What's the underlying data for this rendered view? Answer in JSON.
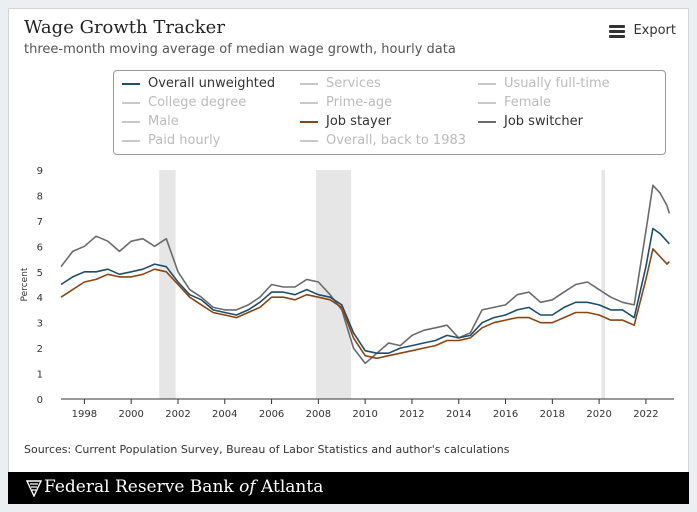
{
  "header": {
    "title": "Wage Growth Tracker",
    "subtitle": "three-month moving average of median wage growth, hourly data",
    "export_label": "Export"
  },
  "legend": {
    "items": [
      {
        "label": "Overall unweighted",
        "active": true,
        "color": "#1f4e6b"
      },
      {
        "label": "Services",
        "active": false,
        "color": "#c8c8c8"
      },
      {
        "label": "Usually full-time",
        "active": false,
        "color": "#c8c8c8"
      },
      {
        "label": "College degree",
        "active": false,
        "color": "#c8c8c8"
      },
      {
        "label": "Prime-age",
        "active": false,
        "color": "#c8c8c8"
      },
      {
        "label": "Female",
        "active": false,
        "color": "#c8c8c8"
      },
      {
        "label": "Male",
        "active": false,
        "color": "#c8c8c8"
      },
      {
        "label": "Job stayer",
        "active": true,
        "color": "#8b4513"
      },
      {
        "label": "Job switcher",
        "active": true,
        "color": "#6b6b6b"
      },
      {
        "label": "Paid hourly",
        "active": false,
        "color": "#c8c8c8"
      },
      {
        "label": "Overall, back to 1983",
        "active": false,
        "color": "#c8c8c8"
      }
    ]
  },
  "chart_data": {
    "type": "line",
    "ylabel": "Percent",
    "xlabel": "",
    "ylim": [
      0,
      9
    ],
    "xlim": [
      1997,
      2023.2
    ],
    "yticks": [
      "0",
      "1",
      "2",
      "3",
      "4",
      "5",
      "6",
      "7",
      "8",
      "9"
    ],
    "xticks": [
      "1998",
      "2000",
      "2002",
      "2004",
      "2006",
      "2008",
      "2010",
      "2012",
      "2014",
      "2016",
      "2018",
      "2020",
      "2022"
    ],
    "recessions": [
      [
        2001.2,
        2001.9
      ],
      [
        2007.9,
        2009.4
      ],
      [
        2020.1,
        2020.25
      ]
    ],
    "series": [
      {
        "name": "Overall unweighted",
        "color": "#1f4e6b",
        "points": [
          [
            1997.0,
            4.5
          ],
          [
            1997.5,
            4.8
          ],
          [
            1998.0,
            5.0
          ],
          [
            1998.5,
            5.0
          ],
          [
            1999.0,
            5.1
          ],
          [
            1999.5,
            4.9
          ],
          [
            2000.0,
            5.0
          ],
          [
            2000.5,
            5.1
          ],
          [
            2001.0,
            5.3
          ],
          [
            2001.5,
            5.2
          ],
          [
            2002.0,
            4.6
          ],
          [
            2002.5,
            4.1
          ],
          [
            2003.0,
            3.9
          ],
          [
            2003.5,
            3.5
          ],
          [
            2004.0,
            3.4
          ],
          [
            2004.5,
            3.3
          ],
          [
            2005.0,
            3.5
          ],
          [
            2005.5,
            3.8
          ],
          [
            2006.0,
            4.2
          ],
          [
            2006.5,
            4.2
          ],
          [
            2007.0,
            4.1
          ],
          [
            2007.5,
            4.3
          ],
          [
            2008.0,
            4.1
          ],
          [
            2008.5,
            4.0
          ],
          [
            2009.0,
            3.7
          ],
          [
            2009.5,
            2.6
          ],
          [
            2010.0,
            1.9
          ],
          [
            2010.5,
            1.8
          ],
          [
            2011.0,
            1.8
          ],
          [
            2011.5,
            2.0
          ],
          [
            2012.0,
            2.1
          ],
          [
            2012.5,
            2.2
          ],
          [
            2013.0,
            2.3
          ],
          [
            2013.5,
            2.5
          ],
          [
            2014.0,
            2.4
          ],
          [
            2014.5,
            2.5
          ],
          [
            2015.0,
            3.0
          ],
          [
            2015.5,
            3.2
          ],
          [
            2016.0,
            3.3
          ],
          [
            2016.5,
            3.5
          ],
          [
            2017.0,
            3.6
          ],
          [
            2017.5,
            3.3
          ],
          [
            2018.0,
            3.3
          ],
          [
            2018.5,
            3.6
          ],
          [
            2019.0,
            3.8
          ],
          [
            2019.5,
            3.8
          ],
          [
            2020.0,
            3.7
          ],
          [
            2020.5,
            3.5
          ],
          [
            2021.0,
            3.5
          ],
          [
            2021.5,
            3.2
          ],
          [
            2022.0,
            5.2
          ],
          [
            2022.3,
            6.7
          ],
          [
            2022.6,
            6.5
          ],
          [
            2022.9,
            6.2
          ],
          [
            2023.0,
            6.1
          ]
        ]
      },
      {
        "name": "Job stayer",
        "color": "#8b4513",
        "points": [
          [
            1997.0,
            4.0
          ],
          [
            1997.5,
            4.3
          ],
          [
            1998.0,
            4.6
          ],
          [
            1998.5,
            4.7
          ],
          [
            1999.0,
            4.9
          ],
          [
            1999.5,
            4.8
          ],
          [
            2000.0,
            4.8
          ],
          [
            2000.5,
            4.9
          ],
          [
            2001.0,
            5.1
          ],
          [
            2001.5,
            5.0
          ],
          [
            2002.0,
            4.5
          ],
          [
            2002.5,
            4.0
          ],
          [
            2003.0,
            3.7
          ],
          [
            2003.5,
            3.4
          ],
          [
            2004.0,
            3.3
          ],
          [
            2004.5,
            3.2
          ],
          [
            2005.0,
            3.4
          ],
          [
            2005.5,
            3.6
          ],
          [
            2006.0,
            4.0
          ],
          [
            2006.5,
            4.0
          ],
          [
            2007.0,
            3.9
          ],
          [
            2007.5,
            4.1
          ],
          [
            2008.0,
            4.0
          ],
          [
            2008.5,
            3.9
          ],
          [
            2009.0,
            3.6
          ],
          [
            2009.5,
            2.4
          ],
          [
            2010.0,
            1.7
          ],
          [
            2010.5,
            1.6
          ],
          [
            2011.0,
            1.7
          ],
          [
            2011.5,
            1.8
          ],
          [
            2012.0,
            1.9
          ],
          [
            2012.5,
            2.0
          ],
          [
            2013.0,
            2.1
          ],
          [
            2013.5,
            2.3
          ],
          [
            2014.0,
            2.3
          ],
          [
            2014.5,
            2.4
          ],
          [
            2015.0,
            2.8
          ],
          [
            2015.5,
            3.0
          ],
          [
            2016.0,
            3.1
          ],
          [
            2016.5,
            3.2
          ],
          [
            2017.0,
            3.2
          ],
          [
            2017.5,
            3.0
          ],
          [
            2018.0,
            3.0
          ],
          [
            2018.5,
            3.2
          ],
          [
            2019.0,
            3.4
          ],
          [
            2019.5,
            3.4
          ],
          [
            2020.0,
            3.3
          ],
          [
            2020.5,
            3.1
          ],
          [
            2021.0,
            3.1
          ],
          [
            2021.5,
            2.9
          ],
          [
            2022.0,
            4.7
          ],
          [
            2022.3,
            5.9
          ],
          [
            2022.6,
            5.6
          ],
          [
            2022.9,
            5.3
          ],
          [
            2023.0,
            5.4
          ]
        ]
      },
      {
        "name": "Job switcher",
        "color": "#6b6b6b",
        "points": [
          [
            1997.0,
            5.2
          ],
          [
            1997.5,
            5.8
          ],
          [
            1998.0,
            6.0
          ],
          [
            1998.5,
            6.4
          ],
          [
            1999.0,
            6.2
          ],
          [
            1999.5,
            5.8
          ],
          [
            2000.0,
            6.2
          ],
          [
            2000.5,
            6.3
          ],
          [
            2001.0,
            6.0
          ],
          [
            2001.5,
            6.3
          ],
          [
            2002.0,
            5.0
          ],
          [
            2002.5,
            4.3
          ],
          [
            2003.0,
            4.0
          ],
          [
            2003.5,
            3.6
          ],
          [
            2004.0,
            3.5
          ],
          [
            2004.5,
            3.5
          ],
          [
            2005.0,
            3.7
          ],
          [
            2005.5,
            4.0
          ],
          [
            2006.0,
            4.5
          ],
          [
            2006.5,
            4.4
          ],
          [
            2007.0,
            4.4
          ],
          [
            2007.5,
            4.7
          ],
          [
            2008.0,
            4.6
          ],
          [
            2008.5,
            4.1
          ],
          [
            2009.0,
            3.5
          ],
          [
            2009.5,
            2.0
          ],
          [
            2010.0,
            1.4
          ],
          [
            2010.5,
            1.8
          ],
          [
            2011.0,
            2.2
          ],
          [
            2011.5,
            2.1
          ],
          [
            2012.0,
            2.5
          ],
          [
            2012.5,
            2.7
          ],
          [
            2013.0,
            2.8
          ],
          [
            2013.5,
            2.9
          ],
          [
            2014.0,
            2.4
          ],
          [
            2014.5,
            2.6
          ],
          [
            2015.0,
            3.5
          ],
          [
            2015.5,
            3.6
          ],
          [
            2016.0,
            3.7
          ],
          [
            2016.5,
            4.1
          ],
          [
            2017.0,
            4.2
          ],
          [
            2017.5,
            3.8
          ],
          [
            2018.0,
            3.9
          ],
          [
            2018.5,
            4.2
          ],
          [
            2019.0,
            4.5
          ],
          [
            2019.5,
            4.6
          ],
          [
            2020.0,
            4.3
          ],
          [
            2020.5,
            4.0
          ],
          [
            2021.0,
            3.8
          ],
          [
            2021.5,
            3.7
          ],
          [
            2022.0,
            6.6
          ],
          [
            2022.3,
            8.4
          ],
          [
            2022.6,
            8.1
          ],
          [
            2022.9,
            7.6
          ],
          [
            2023.0,
            7.3
          ]
        ]
      }
    ]
  },
  "sources": "Sources: Current Population Survey, Bureau of Labor Statistics and author's calculations",
  "footer": {
    "name_pre": "Federal Reserve Bank ",
    "name_of": "of",
    "name_post": " Atlanta"
  }
}
